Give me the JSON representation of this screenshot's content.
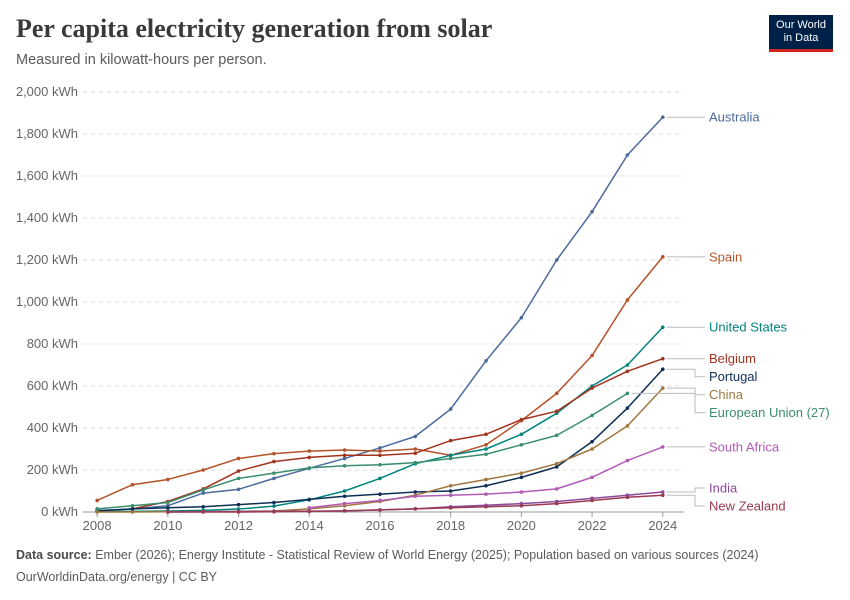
{
  "header": {
    "title": "Per capita electricity generation from solar",
    "subtitle": "Measured in kilowatt-hours per person.",
    "logo_line1": "Our World",
    "logo_line2": "in Data"
  },
  "footer": {
    "source_label": "Data source:",
    "source_text": " Ember (2026); Energy Institute - Statistical Review of World Energy (2025); Population based on various sources (2024)",
    "url_text": "OurWorldinData.org/energy | CC BY"
  },
  "chart_data": {
    "type": "line",
    "unit": "kWh",
    "x_ticks": [
      2008,
      2010,
      2012,
      2014,
      2016,
      2018,
      2020,
      2022,
      2024
    ],
    "xlim": [
      2007.6,
      2024.6
    ],
    "ylim": [
      0,
      2000
    ],
    "y_ticks": [
      0,
      200,
      400,
      600,
      800,
      1000,
      1200,
      1400,
      1600,
      1800,
      2000
    ],
    "y_tick_labels": [
      "0 kWh",
      "200 kWh",
      "400 kWh",
      "600 kWh",
      "800 kWh",
      "1,000 kWh",
      "1,200 kWh",
      "1,400 kWh",
      "1,600 kWh",
      "1,800 kWh",
      "2,000 kWh"
    ],
    "grid": true,
    "legend": "right-end labels",
    "series": [
      {
        "name": "Australia",
        "color": "#4c6a9c",
        "x": [
          2008,
          2009,
          2010,
          2011,
          2012,
          2013,
          2014,
          2015,
          2016,
          2017,
          2018,
          2019,
          2020,
          2021,
          2022,
          2023,
          2024
        ],
        "values": [
          8,
          14,
          30,
          90,
          108,
          160,
          208,
          255,
          305,
          360,
          490,
          720,
          925,
          1200,
          1430,
          1700,
          1880
        ]
      },
      {
        "name": "Spain",
        "color": "#b4532a",
        "x": [
          2008,
          2009,
          2010,
          2011,
          2012,
          2013,
          2014,
          2015,
          2016,
          2017,
          2018,
          2019,
          2020,
          2021,
          2022,
          2023,
          2024
        ],
        "values": [
          55,
          130,
          155,
          200,
          255,
          278,
          290,
          295,
          290,
          300,
          270,
          320,
          435,
          565,
          745,
          1010,
          1215
        ]
      },
      {
        "name": "United States",
        "color": "#00847e",
        "x": [
          2008,
          2009,
          2010,
          2011,
          2012,
          2013,
          2014,
          2015,
          2016,
          2017,
          2018,
          2019,
          2020,
          2021,
          2022,
          2023,
          2024
        ],
        "values": [
          2,
          3,
          5,
          8,
          14,
          28,
          58,
          100,
          160,
          230,
          270,
          300,
          370,
          470,
          600,
          700,
          880
        ]
      },
      {
        "name": "Belgium",
        "color": "#a2331f",
        "x": [
          2009,
          2010,
          2011,
          2012,
          2013,
          2014,
          2015,
          2016,
          2017,
          2018,
          2019,
          2020,
          2021,
          2022,
          2023,
          2024
        ],
        "values": [
          15,
          50,
          110,
          195,
          240,
          260,
          270,
          270,
          280,
          340,
          370,
          440,
          480,
          590,
          670,
          730
        ]
      },
      {
        "name": "Portugal",
        "color": "#0e2f55",
        "x": [
          2008,
          2009,
          2010,
          2011,
          2012,
          2013,
          2014,
          2015,
          2016,
          2017,
          2018,
          2019,
          2020,
          2021,
          2022,
          2023,
          2024
        ],
        "values": [
          5,
          15,
          20,
          25,
          35,
          45,
          60,
          75,
          85,
          95,
          100,
          125,
          165,
          215,
          335,
          495,
          680
        ]
      },
      {
        "name": "China",
        "color": "#a2763f",
        "x": [
          2008,
          2009,
          2010,
          2011,
          2012,
          2013,
          2014,
          2015,
          2016,
          2017,
          2018,
          2019,
          2020,
          2021,
          2022,
          2023,
          2024
        ],
        "values": [
          0,
          0,
          1,
          2,
          3,
          5,
          15,
          30,
          50,
          80,
          125,
          155,
          185,
          230,
          300,
          410,
          590
        ]
      },
      {
        "name": "European Union (27)",
        "color": "#3b8e6e",
        "x": [
          2008,
          2009,
          2010,
          2011,
          2012,
          2013,
          2014,
          2015,
          2016,
          2017,
          2018,
          2019,
          2020,
          2021,
          2022,
          2023
        ],
        "values": [
          15,
          30,
          45,
          105,
          160,
          185,
          210,
          220,
          225,
          235,
          255,
          275,
          320,
          365,
          460,
          565
        ]
      },
      {
        "name": "South Africa",
        "color": "#b25bb5",
        "x": [
          2014,
          2015,
          2016,
          2017,
          2018,
          2019,
          2020,
          2021,
          2022,
          2023,
          2024
        ],
        "values": [
          20,
          40,
          55,
          75,
          80,
          85,
          95,
          110,
          165,
          245,
          310
        ]
      },
      {
        "name": "India",
        "color": "#8c4a9e",
        "x": [
          2010,
          2011,
          2012,
          2013,
          2014,
          2015,
          2016,
          2017,
          2018,
          2019,
          2020,
          2021,
          2022,
          2023,
          2024
        ],
        "values": [
          0,
          1,
          2,
          3,
          4,
          5,
          10,
          15,
          25,
          32,
          40,
          50,
          65,
          80,
          95
        ]
      },
      {
        "name": "New Zealand",
        "color": "#9a3a51",
        "x": [
          2010,
          2011,
          2012,
          2013,
          2014,
          2015,
          2016,
          2017,
          2018,
          2019,
          2020,
          2021,
          2022,
          2023,
          2024
        ],
        "values": [
          0,
          0,
          0,
          1,
          3,
          6,
          10,
          15,
          20,
          25,
          30,
          40,
          55,
          70,
          80
        ]
      }
    ]
  }
}
